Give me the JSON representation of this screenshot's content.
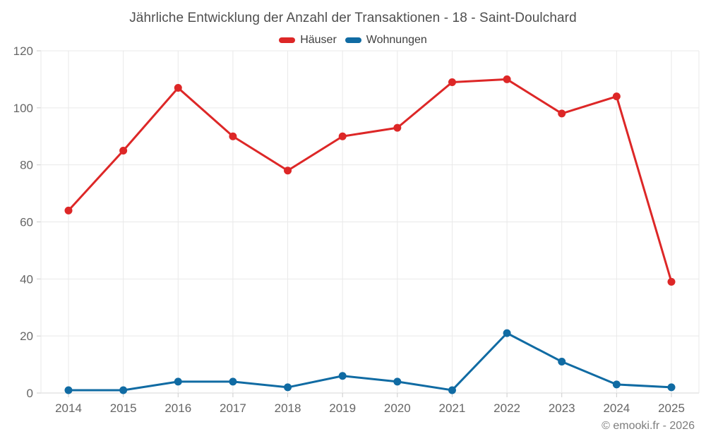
{
  "chart_data": {
    "type": "line",
    "title": "Jährliche Entwicklung der Anzahl der Transaktionen - 18 - Saint-Doulchard",
    "categories": [
      "2014",
      "2015",
      "2016",
      "2017",
      "2018",
      "2019",
      "2020",
      "2021",
      "2022",
      "2023",
      "2024",
      "2025"
    ],
    "series": [
      {
        "name": "Häuser",
        "color": "#dd2727",
        "values": [
          64,
          85,
          107,
          90,
          78,
          90,
          93,
          109,
          110,
          98,
          104,
          39
        ]
      },
      {
        "name": "Wohnungen",
        "color": "#106ba3",
        "values": [
          1,
          1,
          4,
          4,
          2,
          6,
          4,
          1,
          21,
          11,
          3,
          2
        ]
      }
    ],
    "xlabel": "",
    "ylabel": "",
    "ylim": [
      0,
      120
    ],
    "ytick_step": 20,
    "yticks": [
      0,
      20,
      40,
      60,
      80,
      100,
      120
    ],
    "grid": true,
    "legend_position": "top"
  },
  "footer": {
    "text": "© emooki.fr - 2026"
  },
  "colors": {
    "haeuser_series": "#dd2727",
    "wohnungen_series": "#106ba3",
    "gridline": "#e9e9e9",
    "axis_line": "#d7d7d7",
    "tick": "#cccccc",
    "axis_label": "#666666",
    "title_text": "#4f4f4f",
    "footer_text": "#7d7d7d"
  }
}
